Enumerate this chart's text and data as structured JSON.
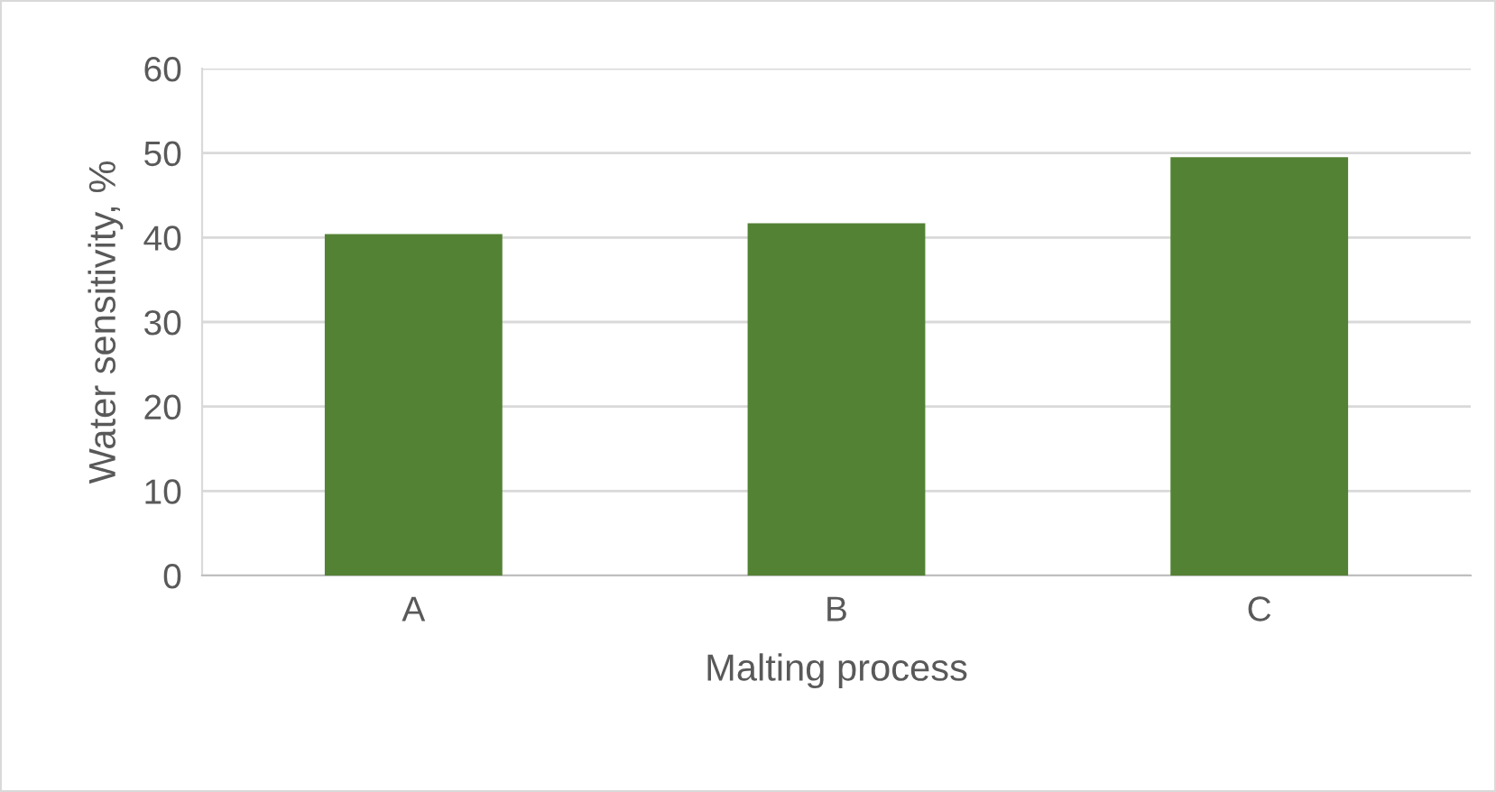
{
  "chart_data": {
    "type": "bar",
    "xlabel": "Malting process",
    "ylabel": "Water sensitivity, %",
    "categories": [
      "A",
      "B",
      "C"
    ],
    "values": [
      40.4,
      41.7,
      49.5
    ],
    "color": "#548235",
    "ylim": [
      0,
      60
    ],
    "yticks": [
      0,
      10,
      20,
      30,
      40,
      50,
      60
    ],
    "grid": "y",
    "legend": false
  }
}
